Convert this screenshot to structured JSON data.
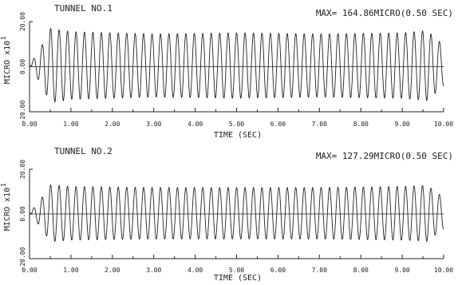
{
  "chart_data": [
    {
      "type": "line",
      "title": "TUNNEL NO.1",
      "max_label": "MAX= 164.86MICRO(0.50  SEC)",
      "xlabel": "TIME (SEC)",
      "ylabel": "MICRO  x10",
      "ylabel_exp": "1",
      "xlim": [
        0,
        10
      ],
      "ylim": [
        -20,
        20
      ],
      "xticks": [
        "0.00",
        "1.00",
        "2.00",
        "3.00",
        "4.00",
        "5.00",
        "6.00",
        "7.00",
        "8.00",
        "9.00",
        "10.00"
      ],
      "yticks": [
        "-20.00",
        "0.00",
        "20.00"
      ],
      "ytick_values": [
        -20,
        0,
        20
      ],
      "frequency_hz": 4.9,
      "amplitude": [
        {
          "t": 0.0,
          "a": 0
        },
        {
          "t": 0.3,
          "a": 9
        },
        {
          "t": 0.5,
          "a": 16.5
        },
        {
          "t": 1.0,
          "a": 15
        },
        {
          "t": 3.0,
          "a": 14
        },
        {
          "t": 5.0,
          "a": 14.5
        },
        {
          "t": 7.0,
          "a": 14
        },
        {
          "t": 9.0,
          "a": 14.5
        },
        {
          "t": 9.6,
          "a": 15.5
        },
        {
          "t": 10.0,
          "a": 9
        }
      ],
      "offset": 0.5,
      "grid": false
    },
    {
      "type": "line",
      "title": "TUNNEL NO.2",
      "max_label": "MAX= 127.29MICRO(0.50  SEC)",
      "xlabel": "TIME (SEC)",
      "ylabel": "MICRO  x10",
      "ylabel_exp": "1",
      "xlim": [
        0,
        10
      ],
      "ylim": [
        -20,
        20
      ],
      "xticks": [
        "0.00",
        "1.00",
        "2.00",
        "3.00",
        "4.00",
        "5.00",
        "6.00",
        "7.00",
        "8.00",
        "9.00",
        "10.00"
      ],
      "yticks": [
        "-20.00",
        "0.00",
        "20.00"
      ],
      "ytick_values": [
        -20,
        0,
        20
      ],
      "frequency_hz": 4.9,
      "amplitude": [
        {
          "t": 0.0,
          "a": 0
        },
        {
          "t": 0.3,
          "a": 7
        },
        {
          "t": 0.5,
          "a": 12.7
        },
        {
          "t": 1.0,
          "a": 12
        },
        {
          "t": 3.0,
          "a": 11.5
        },
        {
          "t": 5.0,
          "a": 11.5
        },
        {
          "t": 7.0,
          "a": 11.5
        },
        {
          "t": 9.0,
          "a": 12
        },
        {
          "t": 9.6,
          "a": 12.5
        },
        {
          "t": 10.0,
          "a": 7
        }
      ],
      "offset": 0.3,
      "grid": false
    }
  ]
}
